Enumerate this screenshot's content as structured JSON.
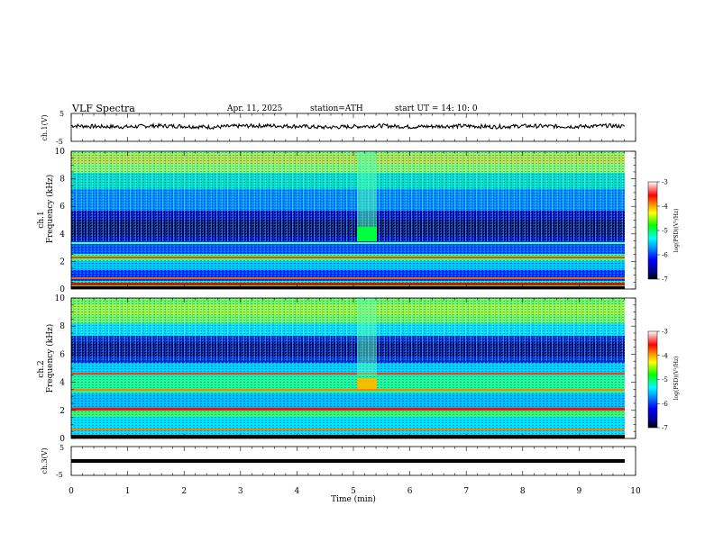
{
  "header": {
    "title": "VLF  Spectra",
    "date": "Apr. 11, 2025",
    "station": "station=ATH",
    "start": "start  UT  =   14: 10: 0"
  },
  "chart_data": [
    {
      "type": "line",
      "panel": "ch1-voltage",
      "ylabel": "ch.1(V)",
      "ylim": [
        -5,
        5
      ],
      "y_ticks": [
        "5",
        "-5"
      ],
      "x": [
        0,
        0.5,
        1,
        1.5,
        2,
        2.5,
        3,
        3.5,
        4,
        4.5,
        5,
        5.5,
        6,
        6.5,
        7,
        7.5,
        8,
        8.5,
        9,
        9.5,
        9.8
      ],
      "values": [
        0.6,
        0.3,
        0.2,
        0.6,
        0.4,
        0.1,
        0.5,
        0.6,
        0.4,
        0.0,
        0.3,
        0.6,
        0.2,
        0.4,
        0.5,
        0.2,
        0.5,
        0.4,
        0.3,
        0.6,
        0.4
      ]
    },
    {
      "type": "heatmap",
      "panel": "ch1-spectrogram",
      "ylabel": "ch.1\nFrequency (kHz)",
      "ylim": [
        0,
        10
      ],
      "y_ticks": [
        "0",
        "2",
        "4",
        "6",
        "8",
        "10"
      ],
      "colorbar": {
        "label": "log(PSD)(V²/Hz)",
        "range": [
          -7,
          -3
        ],
        "ticks": [
          "-3",
          "-4",
          "-5",
          "-6",
          "-7"
        ]
      }
    },
    {
      "type": "heatmap",
      "panel": "ch2-spectrogram",
      "ylabel": "ch.2\nFrequency (kHz)",
      "ylim": [
        0,
        10
      ],
      "y_ticks": [
        "0",
        "2",
        "4",
        "6",
        "8",
        "10"
      ],
      "colorbar": {
        "label": "log(PSD)(V²/Hz)",
        "range": [
          -7,
          -3
        ],
        "ticks": [
          "-3",
          "-4",
          "-5",
          "-6",
          "-7"
        ]
      }
    },
    {
      "type": "line",
      "panel": "ch3-voltage",
      "ylabel": "ch.3(V)",
      "ylim": [
        -5,
        5
      ],
      "y_ticks": [
        "5",
        "-5"
      ],
      "x": [
        0,
        9.8
      ],
      "values": [
        -1.6,
        -1.6
      ]
    }
  ],
  "x_axis": {
    "label": "Time  (min)",
    "ticks": [
      "0",
      "1",
      "2",
      "3",
      "4",
      "5",
      "6",
      "7",
      "8",
      "9",
      "10"
    ],
    "range": [
      0,
      10
    ]
  },
  "colors": {
    "colormap": [
      "#000000",
      "#000080",
      "#0000ff",
      "#0080ff",
      "#00ffff",
      "#80ff80",
      "#00ff00",
      "#ffff00",
      "#ff8000",
      "#ff0000",
      "#ffffff"
    ]
  }
}
